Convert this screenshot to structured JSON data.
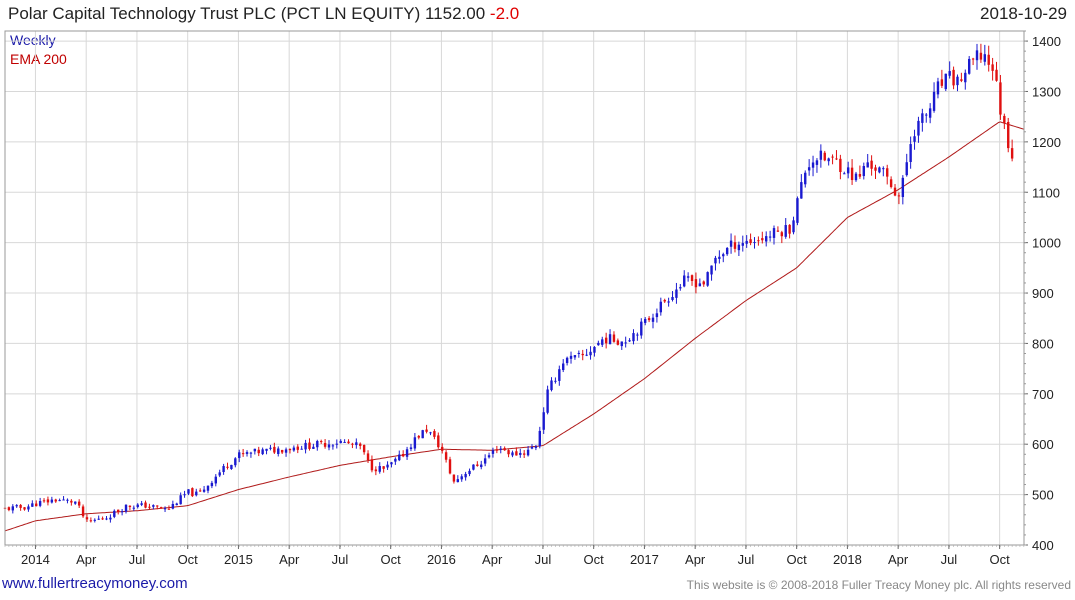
{
  "header": {
    "title": "Polar Capital Technology Trust PLC (PCT LN EQUITY) 1152.00",
    "change": "-2.0",
    "date": "2018-10-29"
  },
  "legend": {
    "weekly": "Weekly",
    "ema": "EMA 200"
  },
  "footer": {
    "url": "www.fullertreacymoney.com",
    "copyright": "This website is © 2008-2018 Fuller Treacy Money plc. All rights reserved"
  },
  "colors": {
    "up": "#1a1ad0",
    "down": "#e01010",
    "ema": "#b01a1a",
    "grid": "#d8d8d8"
  },
  "chart_data": {
    "type": "candlestick",
    "title": "Polar Capital Technology Trust PLC (PCT LN EQUITY)",
    "frequency": "Weekly",
    "ylim": [
      400,
      1420
    ],
    "y_ticks": [
      400,
      500,
      600,
      700,
      800,
      900,
      1000,
      1100,
      1200,
      1300,
      1400
    ],
    "x_range": [
      2013.85,
      2018.87
    ],
    "x_ticks": [
      {
        "label": "2014",
        "t": 2014.0
      },
      {
        "label": "Apr",
        "t": 2014.25
      },
      {
        "label": "Jul",
        "t": 2014.5
      },
      {
        "label": "Oct",
        "t": 2014.75
      },
      {
        "label": "2015",
        "t": 2015.0
      },
      {
        "label": "Apr",
        "t": 2015.25
      },
      {
        "label": "Jul",
        "t": 2015.5
      },
      {
        "label": "Oct",
        "t": 2015.75
      },
      {
        "label": "2016",
        "t": 2016.0
      },
      {
        "label": "Apr",
        "t": 2016.25
      },
      {
        "label": "Jul",
        "t": 2016.5
      },
      {
        "label": "Oct",
        "t": 2016.75
      },
      {
        "label": "2017",
        "t": 2017.0
      },
      {
        "label": "Apr",
        "t": 2017.25
      },
      {
        "label": "Jul",
        "t": 2017.5
      },
      {
        "label": "Oct",
        "t": 2017.75
      },
      {
        "label": "2018",
        "t": 2018.0
      },
      {
        "label": "Apr",
        "t": 2018.25
      },
      {
        "label": "Jul",
        "t": 2018.5
      },
      {
        "label": "Oct",
        "t": 2018.75
      }
    ],
    "close_anchors": [
      [
        2013.85,
        472
      ],
      [
        2013.95,
        475
      ],
      [
        2014.0,
        482
      ],
      [
        2014.1,
        490
      ],
      [
        2014.2,
        485
      ],
      [
        2014.25,
        445
      ],
      [
        2014.35,
        455
      ],
      [
        2014.45,
        478
      ],
      [
        2014.55,
        478
      ],
      [
        2014.65,
        470
      ],
      [
        2014.75,
        505
      ],
      [
        2014.8,
        500
      ],
      [
        2014.85,
        520
      ],
      [
        2014.92,
        550
      ],
      [
        2015.0,
        578
      ],
      [
        2015.1,
        585
      ],
      [
        2015.2,
        590
      ],
      [
        2015.3,
        595
      ],
      [
        2015.4,
        600
      ],
      [
        2015.5,
        605
      ],
      [
        2015.6,
        595
      ],
      [
        2015.65,
        555
      ],
      [
        2015.72,
        550
      ],
      [
        2015.8,
        575
      ],
      [
        2015.88,
        615
      ],
      [
        2015.93,
        630
      ],
      [
        2016.0,
        590
      ],
      [
        2016.06,
        525
      ],
      [
        2016.12,
        545
      ],
      [
        2016.2,
        565
      ],
      [
        2016.28,
        595
      ],
      [
        2016.35,
        580
      ],
      [
        2016.42,
        585
      ],
      [
        2016.47,
        600
      ],
      [
        2016.52,
        700
      ],
      [
        2016.6,
        765
      ],
      [
        2016.7,
        775
      ],
      [
        2016.8,
        810
      ],
      [
        2016.9,
        805
      ],
      [
        2017.0,
        840
      ],
      [
        2017.1,
        885
      ],
      [
        2017.2,
        925
      ],
      [
        2017.3,
        920
      ],
      [
        2017.35,
        970
      ],
      [
        2017.45,
        1000
      ],
      [
        2017.55,
        1005
      ],
      [
        2017.65,
        1020
      ],
      [
        2017.72,
        1030
      ],
      [
        2017.8,
        1155
      ],
      [
        2017.85,
        1170
      ],
      [
        2017.95,
        1160
      ],
      [
        2018.05,
        1125
      ],
      [
        2018.1,
        1160
      ],
      [
        2018.18,
        1135
      ],
      [
        2018.26,
        1090
      ],
      [
        2018.32,
        1220
      ],
      [
        2018.4,
        1260
      ],
      [
        2018.45,
        1310
      ],
      [
        2018.5,
        1325
      ],
      [
        2018.55,
        1320
      ],
      [
        2018.62,
        1360
      ],
      [
        2018.67,
        1375
      ],
      [
        2018.72,
        1345
      ],
      [
        2018.76,
        1250
      ],
      [
        2018.8,
        1190
      ],
      [
        2018.83,
        1152
      ]
    ],
    "ema_anchors": [
      [
        2013.85,
        428
      ],
      [
        2014.0,
        448
      ],
      [
        2014.25,
        462
      ],
      [
        2014.5,
        468
      ],
      [
        2014.75,
        478
      ],
      [
        2015.0,
        510
      ],
      [
        2015.25,
        535
      ],
      [
        2015.5,
        558
      ],
      [
        2015.75,
        575
      ],
      [
        2016.0,
        590
      ],
      [
        2016.25,
        588
      ],
      [
        2016.5,
        597
      ],
      [
        2016.75,
        660
      ],
      [
        2017.0,
        730
      ],
      [
        2017.25,
        810
      ],
      [
        2017.5,
        885
      ],
      [
        2017.75,
        950
      ],
      [
        2018.0,
        1050
      ],
      [
        2018.25,
        1105
      ],
      [
        2018.5,
        1170
      ],
      [
        2018.75,
        1240
      ],
      [
        2018.87,
        1225
      ]
    ],
    "last_close": 1152.0,
    "last_change": -2.0,
    "date": "2018-10-29"
  }
}
